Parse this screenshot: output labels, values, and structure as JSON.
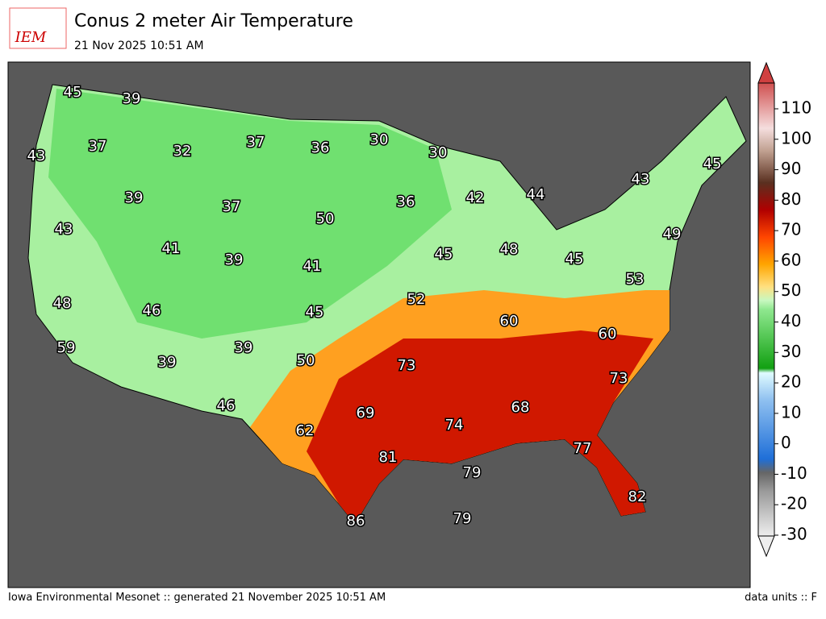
{
  "header": {
    "logo": "IEM",
    "title": "Conus 2 meter Air Temperature",
    "subtitle": "21 Nov 2025 10:51 AM"
  },
  "map": {
    "labels": [
      45,
      39,
      43,
      37,
      32,
      37,
      36,
      30,
      30,
      39,
      37,
      50,
      36,
      42,
      44,
      43,
      45,
      43,
      41,
      39,
      41,
      45,
      48,
      45,
      49,
      53,
      48,
      46,
      45,
      52,
      60,
      60,
      59,
      39,
      39,
      50,
      73,
      73,
      68,
      69,
      74,
      46,
      62,
      77,
      81,
      79,
      82,
      86,
      79
    ]
  },
  "colorbar": {
    "ticks": [
      -30,
      -20,
      -10,
      0,
      10,
      20,
      30,
      40,
      50,
      60,
      70,
      80,
      90,
      100,
      110
    ]
  },
  "footer": {
    "left": "Iowa Environmental Mesonet :: generated 21 November 2025 10:51 AM",
    "right": "data units :: F"
  }
}
